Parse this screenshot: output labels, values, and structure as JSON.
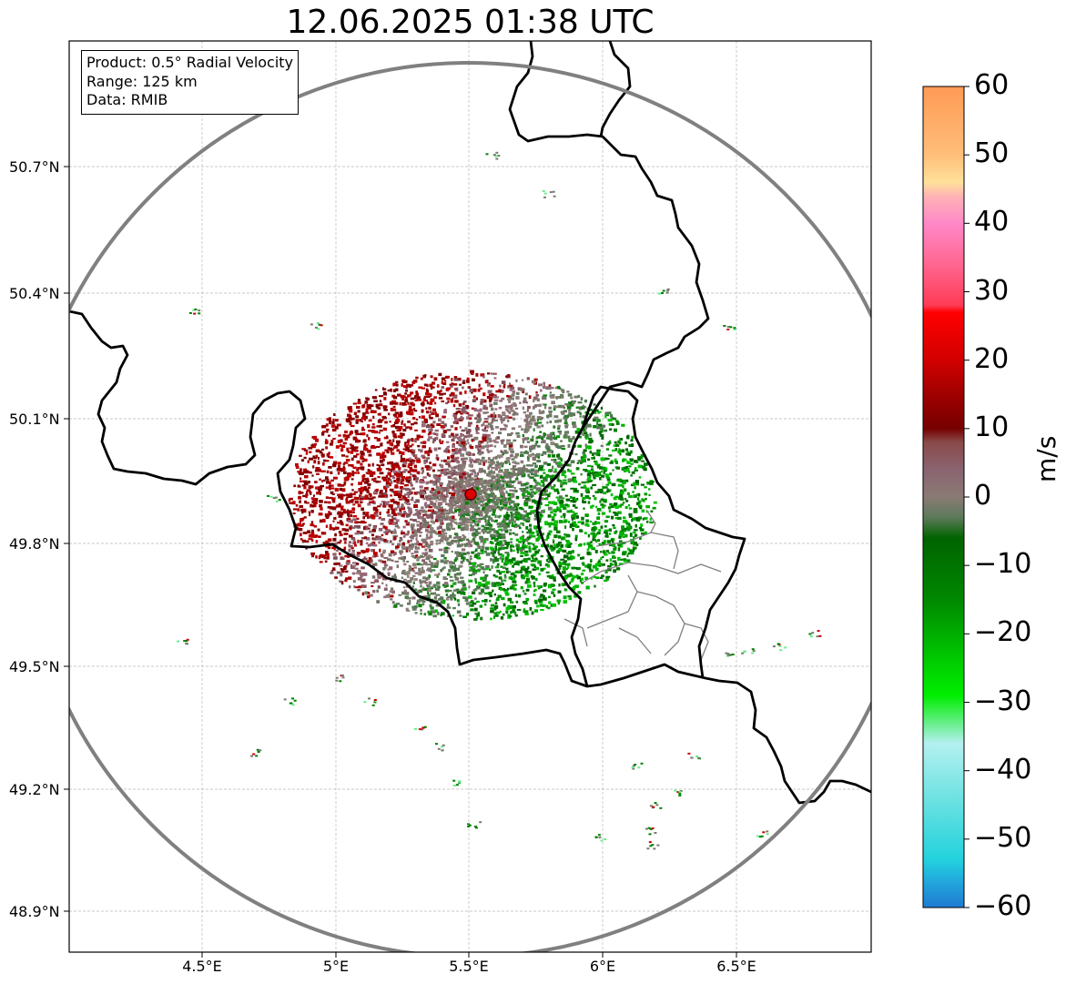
{
  "title": "12.06.2025 01:38 UTC",
  "info_box": {
    "product": "Product: 0.5° Radial Velocity",
    "range": "Range: 125 km",
    "data": "Data: RMIB"
  },
  "axes": {
    "lat_ticks": [
      "50.7°N",
      "50.4°N",
      "50.1°N",
      "49.8°N",
      "49.5°N",
      "49.2°N",
      "48.9°N"
    ],
    "lon_ticks": [
      "4.5°E",
      "5°E",
      "5.5°E",
      "6°E",
      "6.5°E"
    ]
  },
  "radar_site": {
    "lon": 5.5,
    "lat": 49.92
  },
  "colorbar": {
    "unit": "m/s",
    "min": -60,
    "max": 60,
    "ticks": [
      "60",
      "50",
      "40",
      "30",
      "20",
      "10",
      "0",
      "−10",
      "−20",
      "−30",
      "−40",
      "−50",
      "−60"
    ],
    "stops": [
      {
        "v": 60,
        "c": "#ff9a55"
      },
      {
        "v": 50,
        "c": "#ffbe7a"
      },
      {
        "v": 46,
        "c": "#ffe19a"
      },
      {
        "v": 44,
        "c": "#ffb4b4"
      },
      {
        "v": 40,
        "c": "#ff88c8"
      },
      {
        "v": 34,
        "c": "#ff6690"
      },
      {
        "v": 28,
        "c": "#ff3b55"
      },
      {
        "v": 27,
        "c": "#ff0000"
      },
      {
        "v": 20,
        "c": "#d20000"
      },
      {
        "v": 15,
        "c": "#a00000"
      },
      {
        "v": 10,
        "c": "#760000"
      },
      {
        "v": 8,
        "c": "#8a4a4a"
      },
      {
        "v": 4,
        "c": "#8a6470"
      },
      {
        "v": 0,
        "c": "#8a7a74"
      },
      {
        "v": -3,
        "c": "#5c7a5a"
      },
      {
        "v": -6,
        "c": "#006400"
      },
      {
        "v": -15,
        "c": "#008800"
      },
      {
        "v": -24,
        "c": "#00cc00"
      },
      {
        "v": -29,
        "c": "#00ee00"
      },
      {
        "v": -33,
        "c": "#66ee88"
      },
      {
        "v": -36,
        "c": "#b4f0f0"
      },
      {
        "v": -45,
        "c": "#66e0e0"
      },
      {
        "v": -53,
        "c": "#22d2dd"
      },
      {
        "v": -56,
        "c": "#22aadd"
      },
      {
        "v": -60,
        "c": "#1e7ad2"
      }
    ]
  },
  "colors": {
    "inbound_green": "#008000",
    "outbound_red": "#b00000",
    "zero_grey": "#8a7a74",
    "range_ring": "#808080",
    "border": "#000000"
  }
}
